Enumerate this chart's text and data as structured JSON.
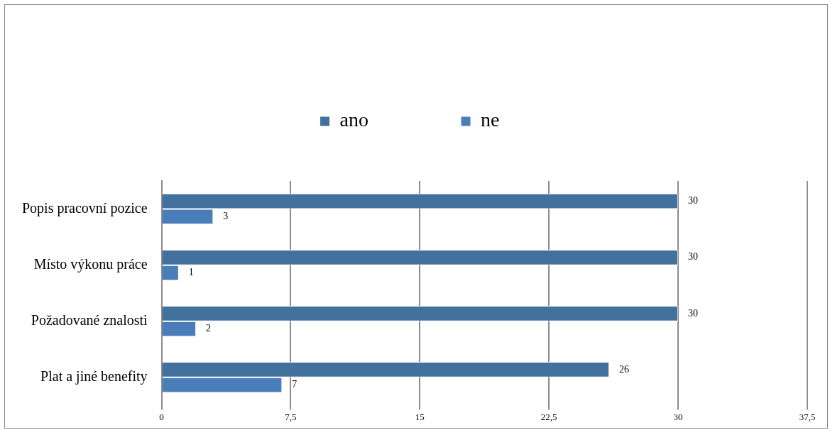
{
  "chart_data": {
    "type": "bar",
    "orientation": "horizontal",
    "categories": [
      "Popis pracovní pozice",
      "Místo výkonu práce",
      "Požadované znalosti",
      "Plat a jiné benefity"
    ],
    "series": [
      {
        "name": "ano",
        "color": "#41719c",
        "values": [
          30,
          30,
          30,
          26
        ]
      },
      {
        "name": "ne",
        "color": "#4a7ebb",
        "values": [
          3,
          1,
          2,
          7
        ]
      }
    ],
    "xlim": [
      0,
      37.5
    ],
    "xticks": [
      0,
      {
        "value": 7.5,
        "label": "7,5"
      },
      15,
      {
        "value": 22.5,
        "label": "22,5"
      },
      30,
      {
        "value": 37.5,
        "label": "37,5"
      }
    ],
    "grid": "x",
    "legend": "top",
    "data_labels": true
  }
}
